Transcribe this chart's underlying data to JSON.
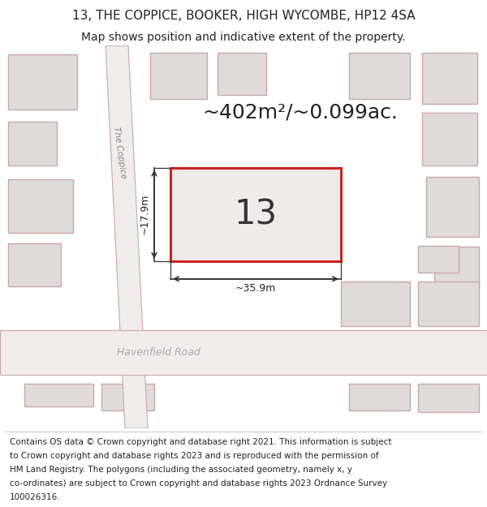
{
  "title_line1": "13, THE COPPICE, BOOKER, HIGH WYCOMBE, HP12 4SA",
  "title_line2": "Map shows position and indicative extent of the property.",
  "background_color": "#f5f0f0",
  "map_background": "#ede8e8",
  "building_fill": "#e0dbdb",
  "building_edge_color": "#c8a8a8",
  "highlight_fill": "#f0ebeb",
  "highlight_edge": "#cc2222",
  "road_fill": "#f0ecec",
  "road_edge": "#c8a8a8",
  "area_text": "~402m²/~0.099ac.",
  "property_number": "13",
  "dim_width": "~35.9m",
  "dim_height": "~17.9m",
  "street_name": "The Coppice",
  "road_name": "Havenfield Road",
  "title_fontsize": 11,
  "subtitle_fontsize": 10,
  "footer_fontsize": 7.5,
  "footer_lines": [
    "Contains OS data © Crown copyright and database right 2021. This information is subject",
    "to Crown copyright and database rights 2023 and is reproduced with the permission of",
    "HM Land Registry. The polygons (including the associated geometry, namely x, y",
    "co-ordinates) are subject to Crown copyright and database rights 2023 Ordnance Survey",
    "100026316."
  ]
}
